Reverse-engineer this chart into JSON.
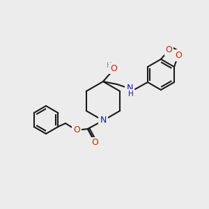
{
  "bg_color": "#ececec",
  "bond_color": "#1a1a1a",
  "bond_width": 1.5,
  "atom_colors": {
    "N": "#1010cc",
    "O": "#cc2200",
    "H_label": "#5a9aaa"
  },
  "font_size_atom": 9,
  "font_size_small": 7.5
}
